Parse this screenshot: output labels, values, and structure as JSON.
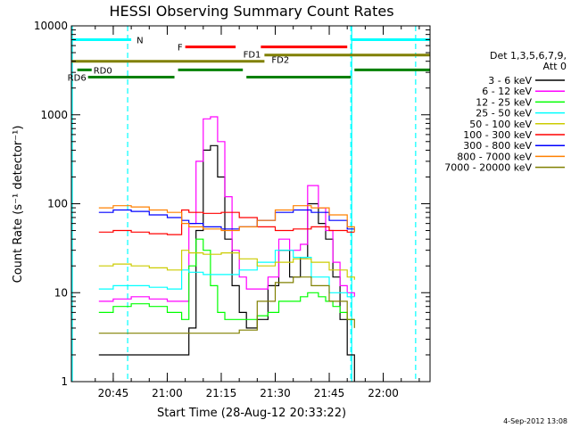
{
  "chart_data": {
    "type": "line",
    "title": "HESSI Observing Summary Count Rates",
    "xlabel": "Start Time (28-Aug-12 20:33:22)",
    "ylabel": "Count Rate (s⁻¹ detector⁻¹)",
    "y_scale": "log",
    "ylim": [
      1,
      10000
    ],
    "xlim": [
      "20:33:22",
      "22:13:00"
    ],
    "x_ticks": [
      "20:45",
      "21:00",
      "21:15",
      "21:30",
      "21:45",
      "22:00"
    ],
    "y_ticks": [
      "1",
      "10",
      "100",
      "1000",
      "10000"
    ],
    "grid": false,
    "legend_position": "right",
    "legend_title": [
      "Det 1,3,5,6,7,9,",
      "Att 0"
    ],
    "series": [
      {
        "name": "3 - 6 keV",
        "color": "#000000",
        "x": [
          "20:41",
          "20:45",
          "20:50",
          "20:55",
          "21:00",
          "21:04",
          "21:06",
          "21:08",
          "21:10",
          "21:12",
          "21:14",
          "21:16",
          "21:18",
          "21:20",
          "21:22",
          "21:25",
          "21:28",
          "21:31",
          "21:34",
          "21:37",
          "21:39",
          "21:42",
          "21:44",
          "21:46",
          "21:48",
          "21:50",
          "21:52"
        ],
        "y": [
          2,
          2,
          2,
          2,
          2,
          2,
          4,
          50,
          400,
          450,
          200,
          40,
          12,
          6,
          4,
          5,
          12,
          30,
          15,
          25,
          100,
          60,
          40,
          15,
          5,
          2,
          1
        ]
      },
      {
        "name": "6 - 12 keV",
        "color": "#ff00ff",
        "x": [
          "20:41",
          "20:45",
          "20:50",
          "20:55",
          "21:00",
          "21:04",
          "21:06",
          "21:08",
          "21:10",
          "21:12",
          "21:14",
          "21:16",
          "21:18",
          "21:20",
          "21:22",
          "21:25",
          "21:28",
          "21:31",
          "21:34",
          "21:37",
          "21:39",
          "21:42",
          "21:44",
          "21:46",
          "21:48",
          "21:50",
          "21:52"
        ],
        "y": [
          8,
          8.5,
          9,
          8.5,
          8,
          8,
          60,
          300,
          900,
          950,
          500,
          120,
          30,
          15,
          11,
          11,
          15,
          40,
          30,
          35,
          160,
          90,
          50,
          22,
          12,
          10,
          9
        ]
      },
      {
        "name": "12 - 25 keV",
        "color": "#00ff00",
        "x": [
          "20:41",
          "20:45",
          "20:50",
          "20:55",
          "21:00",
          "21:04",
          "21:06",
          "21:08",
          "21:10",
          "21:12",
          "21:14",
          "21:16",
          "21:18",
          "21:20",
          "21:22",
          "21:25",
          "21:28",
          "21:31",
          "21:34",
          "21:37",
          "21:39",
          "21:42",
          "21:44",
          "21:46",
          "21:48",
          "21:50",
          "21:52"
        ],
        "y": [
          6,
          7,
          7.5,
          7,
          6,
          5,
          20,
          40,
          30,
          12,
          6,
          5,
          5,
          5,
          5,
          5.5,
          6,
          8,
          8,
          9,
          10,
          9,
          8,
          7,
          6,
          5,
          5
        ]
      },
      {
        "name": "25 - 50 keV",
        "color": "#00ffff",
        "x": [
          "20:41",
          "20:45",
          "20:50",
          "20:55",
          "21:00",
          "21:04",
          "21:06",
          "21:10",
          "21:15",
          "21:20",
          "21:25",
          "21:30",
          "21:35",
          "21:40",
          "21:45",
          "21:50",
          "21:52"
        ],
        "y": [
          11,
          12,
          12,
          11.5,
          11,
          18,
          17,
          16,
          16,
          18,
          22,
          30,
          25,
          15,
          10,
          9,
          9
        ]
      },
      {
        "name": "50 - 100 keV",
        "color": "#cccc00",
        "x": [
          "20:41",
          "20:45",
          "20:50",
          "20:55",
          "21:00",
          "21:04",
          "21:06",
          "21:10",
          "21:15",
          "21:20",
          "21:25",
          "21:30",
          "21:35",
          "21:40",
          "21:45",
          "21:50",
          "21:52"
        ],
        "y": [
          20,
          21,
          20,
          19,
          18,
          30,
          28,
          27,
          28,
          24,
          20,
          22,
          24,
          22,
          18,
          15,
          14
        ]
      },
      {
        "name": "100 - 300 keV",
        "color": "#ff0000",
        "x": [
          "20:41",
          "20:45",
          "20:50",
          "20:55",
          "21:00",
          "21:04",
          "21:06",
          "21:10",
          "21:15",
          "21:20",
          "21:25",
          "21:30",
          "21:35",
          "21:40",
          "21:45",
          "21:50",
          "21:52"
        ],
        "y": [
          48,
          50,
          48,
          46,
          45,
          85,
          80,
          78,
          80,
          70,
          55,
          50,
          52,
          55,
          50,
          48,
          48
        ]
      },
      {
        "name": "300 - 800 keV",
        "color": "#0000ff",
        "x": [
          "20:41",
          "20:45",
          "20:50",
          "20:55",
          "21:00",
          "21:04",
          "21:06",
          "21:10",
          "21:15",
          "21:20",
          "21:25",
          "21:30",
          "21:35",
          "21:40",
          "21:45",
          "21:50",
          "21:52"
        ],
        "y": [
          80,
          85,
          82,
          75,
          70,
          65,
          60,
          55,
          52,
          55,
          65,
          80,
          85,
          80,
          65,
          52,
          50
        ]
      },
      {
        "name": "800 - 7000 keV",
        "color": "#ff8000",
        "x": [
          "20:41",
          "20:45",
          "20:50",
          "20:55",
          "21:00",
          "21:04",
          "21:06",
          "21:10",
          "21:15",
          "21:20",
          "21:25",
          "21:30",
          "21:35",
          "21:40",
          "21:45",
          "21:50",
          "21:52"
        ],
        "y": [
          90,
          95,
          92,
          85,
          80,
          60,
          55,
          52,
          50,
          55,
          65,
          85,
          95,
          90,
          75,
          55,
          48
        ]
      },
      {
        "name": "7000 - 20000 keV",
        "color": "#808000",
        "x": [
          "20:41",
          "20:45",
          "20:50",
          "20:55",
          "21:00",
          "21:04",
          "21:06",
          "21:10",
          "21:15",
          "21:20",
          "21:25",
          "21:30",
          "21:35",
          "21:40",
          "21:45",
          "21:50",
          "21:52"
        ],
        "y": [
          3.5,
          3.5,
          3.5,
          3.5,
          3.5,
          3.5,
          3.5,
          3.5,
          3.5,
          3.8,
          8,
          13,
          15,
          12,
          8,
          5,
          4
        ]
      }
    ],
    "vertical_markers": [
      {
        "x": "20:49",
        "style": "dashed",
        "color": "#00ffff"
      },
      {
        "x": "21:51",
        "style": "dashed",
        "color": "#00ffff"
      },
      {
        "x": "22:09",
        "style": "dashed",
        "color": "#00ffff"
      }
    ],
    "flag_bars": [
      {
        "label": "N",
        "color": "#00ffff",
        "segments": [
          [
            "20:33:22",
            "20:50"
          ],
          [
            "21:51",
            "22:13:00"
          ]
        ],
        "level": 7000
      },
      {
        "label": "F",
        "color": "#ff0000",
        "segments": [
          [
            "21:05",
            "21:19"
          ],
          [
            "21:26",
            "21:50"
          ]
        ],
        "level": 5800
      },
      {
        "label": "FD1",
        "color": "#808000",
        "segments": [
          [
            "20:33:22",
            "21:27"
          ]
        ],
        "level": 4000
      },
      {
        "label": "FD2",
        "color": "#808000",
        "segments": [
          [
            "21:27",
            "22:13:00"
          ]
        ],
        "level": 4700
      },
      {
        "label": "RD0",
        "color": "#008000",
        "segments": [
          [
            "20:35",
            "20:39"
          ],
          [
            "21:03",
            "21:21"
          ],
          [
            "21:52",
            "22:13:00"
          ]
        ],
        "level": 3200
      },
      {
        "label": "RD6",
        "color": "#008000",
        "segments": [
          [
            "20:38",
            "21:02"
          ],
          [
            "21:22",
            "21:51"
          ]
        ],
        "level": 2650
      }
    ],
    "annotation_date": "4-Sep-2012 13:08"
  }
}
